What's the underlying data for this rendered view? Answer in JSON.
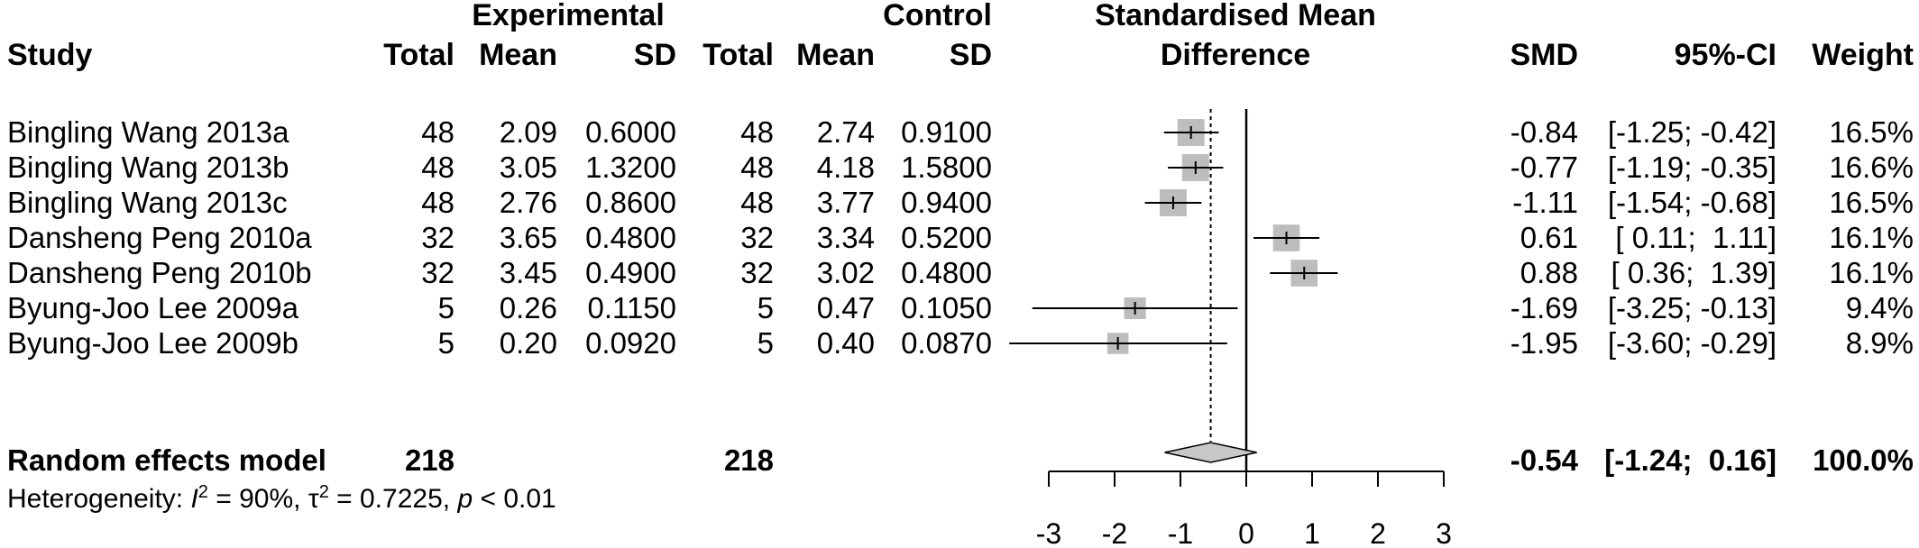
{
  "header": {
    "study": "Study",
    "experimental_group": "Experimental",
    "control_group": "Control",
    "exp_total": "Total",
    "exp_mean": "Mean",
    "exp_sd": "SD",
    "ctl_total": "Total",
    "ctl_mean": "Mean",
    "ctl_sd": "SD",
    "effect_line1": "Standardised Mean",
    "effect_line2": "Difference",
    "smd": "SMD",
    "ci": "95%-CI",
    "weight": "Weight"
  },
  "studies": [
    {
      "study": "Bingling Wang 2013a",
      "exp_total": "48",
      "exp_mean": "2.09",
      "exp_sd": "0.6000",
      "ctl_total": "48",
      "ctl_mean": "2.74",
      "ctl_sd": "0.9100",
      "smd_text": "-0.84",
      "ci_text": "[-1.25; -0.42]",
      "weight_text": "16.5%"
    },
    {
      "study": "Bingling Wang 2013b",
      "exp_total": "48",
      "exp_mean": "3.05",
      "exp_sd": "1.3200",
      "ctl_total": "48",
      "ctl_mean": "4.18",
      "ctl_sd": "1.5800",
      "smd_text": "-0.77",
      "ci_text": "[-1.19; -0.35]",
      "weight_text": "16.6%"
    },
    {
      "study": "Bingling Wang 2013c",
      "exp_total": "48",
      "exp_mean": "2.76",
      "exp_sd": "0.8600",
      "ctl_total": "48",
      "ctl_mean": "3.77",
      "ctl_sd": "0.9400",
      "smd_text": "-1.11",
      "ci_text": "[-1.54; -0.68]",
      "weight_text": "16.5%"
    },
    {
      "study": "Dansheng Peng 2010a",
      "exp_total": "32",
      "exp_mean": "3.65",
      "exp_sd": "0.4800",
      "ctl_total": "32",
      "ctl_mean": "3.34",
      "ctl_sd": "0.5200",
      "smd_text": "0.61",
      "ci_text": "[ 0.11;  1.11]",
      "weight_text": "16.1%"
    },
    {
      "study": "Dansheng Peng 2010b",
      "exp_total": "32",
      "exp_mean": "3.45",
      "exp_sd": "0.4900",
      "ctl_total": "32",
      "ctl_mean": "3.02",
      "ctl_sd": "0.4800",
      "smd_text": "0.88",
      "ci_text": "[ 0.36;  1.39]",
      "weight_text": "16.1%"
    },
    {
      "study": "Byung-Joo Lee 2009a",
      "exp_total": "5",
      "exp_mean": "0.26",
      "exp_sd": "0.1150",
      "ctl_total": "5",
      "ctl_mean": "0.47",
      "ctl_sd": "0.1050",
      "smd_text": "-1.69",
      "ci_text": "[-3.25; -0.13]",
      "weight_text": "9.4%"
    },
    {
      "study": "Byung-Joo Lee 2009b",
      "exp_total": "5",
      "exp_mean": "0.20",
      "exp_sd": "0.0920",
      "ctl_total": "5",
      "ctl_mean": "0.40",
      "ctl_sd": "0.0870",
      "smd_text": "-1.95",
      "ci_text": "[-3.60; -0.29]",
      "weight_text": "8.9%"
    }
  ],
  "summary": {
    "label": "Random effects model",
    "exp_total": "218",
    "ctl_total": "218",
    "smd_text": "-0.54",
    "ci_text": "[-1.24;  0.16]",
    "weight_text": "100.0%"
  },
  "heterogeneity": {
    "prefix": "Heterogeneity: ",
    "i2_symbol": "I",
    "i2_sup": "2",
    "i2_value": " = 90%, ",
    "tau_symbol": "τ",
    "tau_sup": "2",
    "tau_value": " = 0.7225, ",
    "p_symbol": "p",
    "p_value": " < 0.01"
  },
  "chart_data": {
    "type": "forest",
    "xlim": [
      -3,
      3
    ],
    "ticks": [
      -3,
      -2,
      -1,
      0,
      1,
      2,
      3
    ],
    "tick_labels": [
      "-3",
      "-2",
      "-1",
      "0",
      "1",
      "2",
      "3"
    ],
    "null_line": 0,
    "pooled_line": -0.54,
    "studies": [
      {
        "name": "Bingling Wang 2013a",
        "smd": -0.84,
        "lo": -1.25,
        "hi": -0.42,
        "weight": 16.5
      },
      {
        "name": "Bingling Wang 2013b",
        "smd": -0.77,
        "lo": -1.19,
        "hi": -0.35,
        "weight": 16.6
      },
      {
        "name": "Bingling Wang 2013c",
        "smd": -1.11,
        "lo": -1.54,
        "hi": -0.68,
        "weight": 16.5
      },
      {
        "name": "Dansheng Peng 2010a",
        "smd": 0.61,
        "lo": 0.11,
        "hi": 1.11,
        "weight": 16.1
      },
      {
        "name": "Dansheng Peng 2010b",
        "smd": 0.88,
        "lo": 0.36,
        "hi": 1.39,
        "weight": 16.1
      },
      {
        "name": "Byung-Joo Lee 2009a",
        "smd": -1.69,
        "lo": -3.25,
        "hi": -0.13,
        "weight": 9.4
      },
      {
        "name": "Byung-Joo Lee 2009b",
        "smd": -1.95,
        "lo": -3.6,
        "hi": -0.29,
        "weight": 8.9
      }
    ],
    "pooled": {
      "smd": -0.54,
      "lo": -1.24,
      "hi": 0.16,
      "weight": 100.0
    },
    "colors": {
      "box": "#bdbdbd",
      "diamond": "#c8c8c8",
      "line": "#000000"
    }
  }
}
